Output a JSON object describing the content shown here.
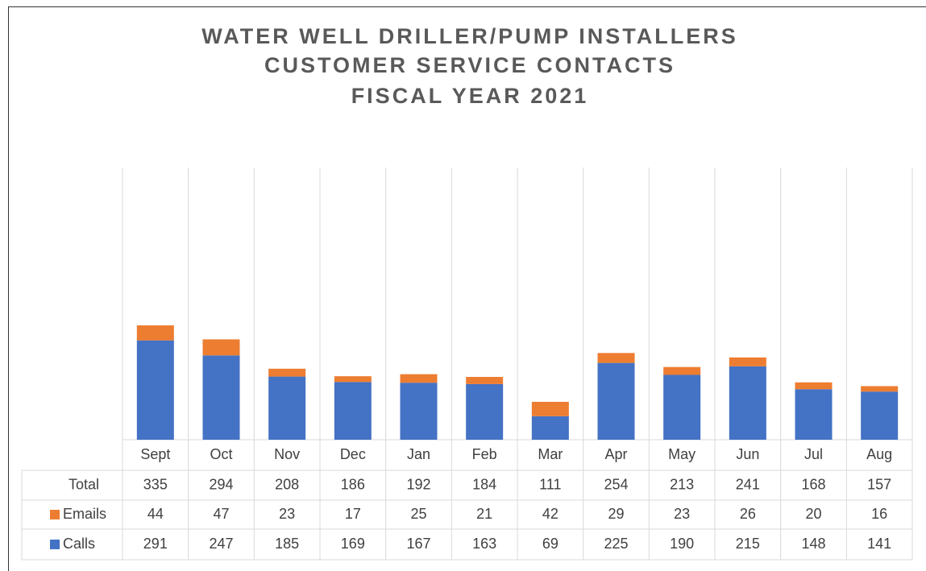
{
  "chart_data": {
    "type": "bar",
    "stacked": true,
    "title": [
      "WATER WELL DRILLER/PUMP INSTALLERS",
      "CUSTOMER SERVICE CONTACTS",
      "FISCAL YEAR 2021"
    ],
    "categories": [
      "Sept",
      "Oct",
      "Nov",
      "Dec",
      "Jan",
      "Feb",
      "Mar",
      "Apr",
      "May",
      "Jun",
      "Jul",
      "Aug"
    ],
    "series": [
      {
        "name": "Calls",
        "color": "#4472c4",
        "values": [
          291,
          247,
          185,
          169,
          167,
          163,
          69,
          225,
          190,
          215,
          148,
          141
        ]
      },
      {
        "name": "Emails",
        "color": "#ed7d31",
        "values": [
          44,
          47,
          23,
          17,
          25,
          21,
          42,
          29,
          23,
          26,
          20,
          16
        ]
      }
    ],
    "total": {
      "name": "Total",
      "values": [
        335,
        294,
        208,
        186,
        192,
        184,
        111,
        254,
        213,
        241,
        168,
        157
      ]
    }
  }
}
